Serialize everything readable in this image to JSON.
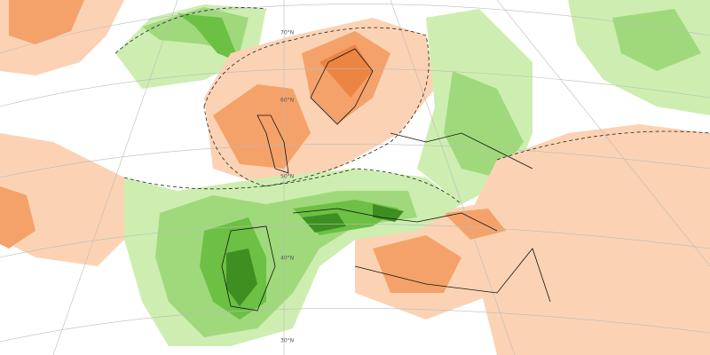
{
  "graticule_labels": [
    "70°N",
    "60°N",
    "50°N",
    "40°N",
    "30°N"
  ]
}
